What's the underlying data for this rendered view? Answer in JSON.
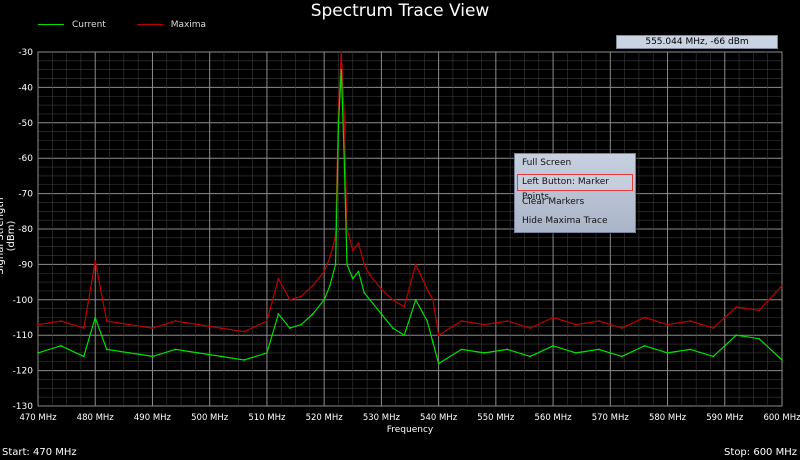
{
  "window": {
    "title": "Spectrum Trace View"
  },
  "legend": [
    {
      "label": "Current",
      "color": "#00e000"
    },
    {
      "label": "Maxima",
      "color": "#c00000"
    }
  ],
  "readout": "555.044 MHz,   -66 dBm",
  "footer": {
    "start": "Start: 470 MHz",
    "stop": "Stop: 600 MHz"
  },
  "context_menu": {
    "items": [
      {
        "label": "Full Screen"
      },
      {
        "label": "Left Button: Marker Points",
        "highlighted": true
      },
      {
        "label": "Clear Markers"
      },
      {
        "label": "Hide Maxima Trace"
      }
    ]
  },
  "chart_data": {
    "type": "line",
    "title": "Spectrum Trace View",
    "xlabel": "Frequency",
    "ylabel": "Signal Strength (dBm)",
    "xlim": [
      470,
      600
    ],
    "ylim": [
      -130,
      -30
    ],
    "x_ticks": [
      "470 MHz",
      "480 MHz",
      "490 MHz",
      "500 MHz",
      "510 MHz",
      "520 MHz",
      "530 MHz",
      "540 MHz",
      "550 MHz",
      "560 MHz",
      "570 MHz",
      "580 MHz",
      "590 MHz",
      "600 MHz"
    ],
    "y_ticks": [
      "-30",
      "-40",
      "-50",
      "-60",
      "-70",
      "-80",
      "-90",
      "-100",
      "-110",
      "-120",
      "-130"
    ],
    "grid": true,
    "legend_position": "top-left",
    "series": [
      {
        "name": "Current",
        "color": "#00e000",
        "x": [
          470,
          474,
          478,
          480,
          482,
          486,
          490,
          494,
          498,
          502,
          506,
          510,
          512,
          514,
          516,
          518,
          520,
          521,
          522,
          522.5,
          523,
          523.5,
          524,
          525,
          526,
          527,
          528,
          530,
          532,
          534,
          536,
          538,
          539,
          540,
          544,
          548,
          552,
          556,
          560,
          564,
          568,
          572,
          576,
          580,
          584,
          588,
          592,
          596,
          600
        ],
        "y": [
          -115,
          -113,
          -116,
          -105,
          -114,
          -115,
          -116,
          -114,
          -115,
          -116,
          -117,
          -115,
          -104,
          -108,
          -107,
          -104,
          -100,
          -96,
          -90,
          -50,
          -35,
          -60,
          -90,
          -94,
          -92,
          -98,
          -100,
          -104,
          -108,
          -110,
          -100,
          -106,
          -112,
          -118,
          -114,
          -115,
          -114,
          -116,
          -113,
          -115,
          -114,
          -116,
          -113,
          -115,
          -114,
          -116,
          -110,
          -111,
          -117
        ]
      },
      {
        "name": "Maxima",
        "color": "#c00000",
        "x": [
          470,
          474,
          478,
          480,
          482,
          486,
          490,
          494,
          498,
          502,
          506,
          510,
          512,
          514,
          516,
          518,
          520,
          521,
          522,
          522.5,
          523,
          523.5,
          524,
          525,
          526,
          527,
          528,
          530,
          532,
          534,
          536,
          538,
          539,
          540,
          544,
          548,
          552,
          556,
          560,
          564,
          568,
          572,
          576,
          580,
          584,
          588,
          592,
          596,
          600
        ],
        "y": [
          -107,
          -106,
          -108,
          -89,
          -106,
          -107,
          -108,
          -106,
          -107,
          -108,
          -109,
          -106,
          -94,
          -100,
          -99,
          -96,
          -92,
          -88,
          -82,
          -45,
          -30,
          -48,
          -80,
          -86,
          -84,
          -90,
          -93,
          -97,
          -100,
          -102,
          -90,
          -97,
          -100,
          -110,
          -106,
          -107,
          -106,
          -108,
          -105,
          -107,
          -106,
          -108,
          -105,
          -107,
          -106,
          -108,
          -102,
          -103,
          -96
        ]
      }
    ]
  }
}
